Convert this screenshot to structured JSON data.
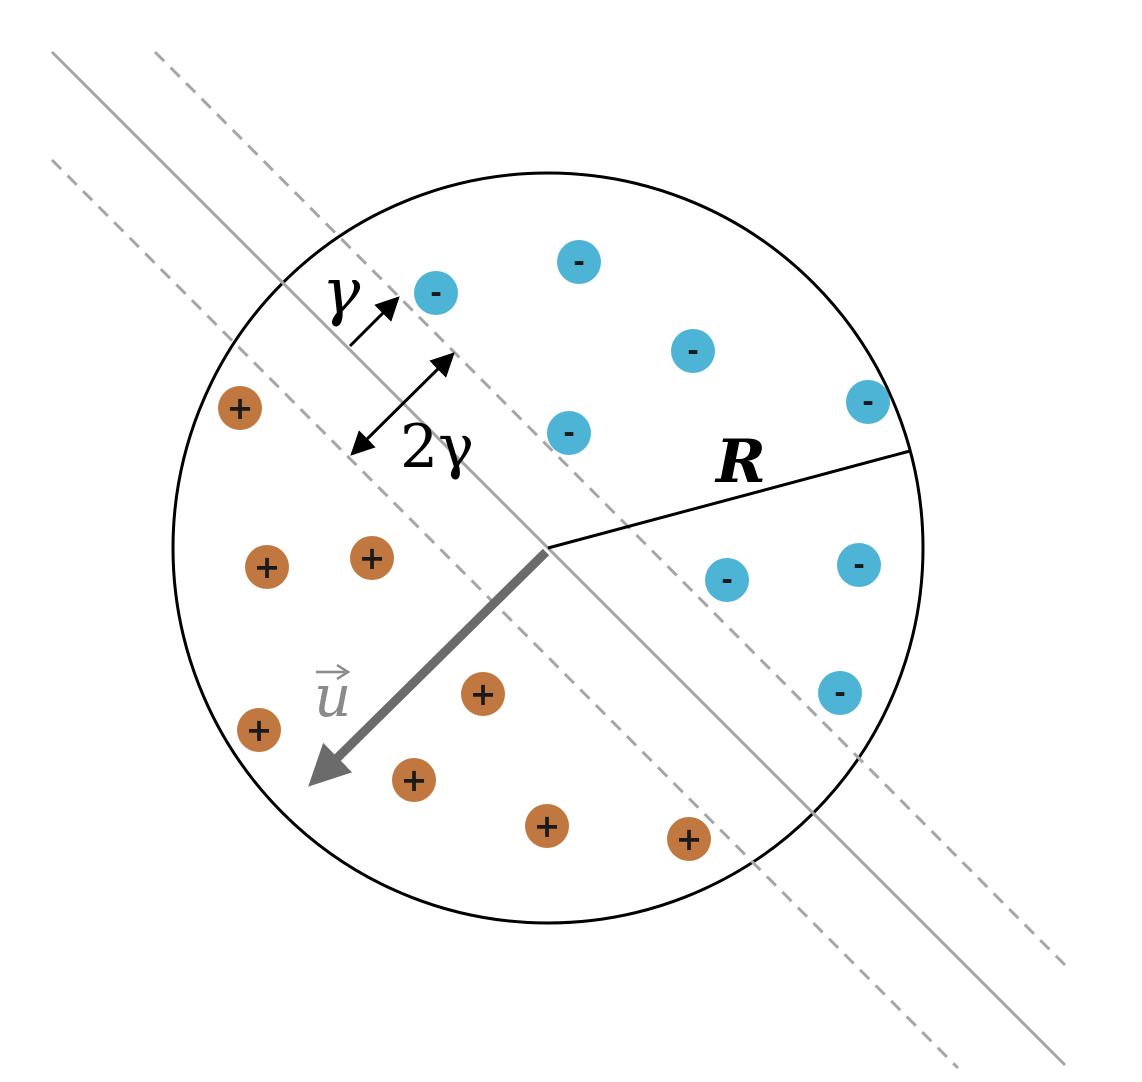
{
  "colors": {
    "background": "#ffffff",
    "circle_stroke": "#000000",
    "hyperplane": "#a6a6a6",
    "margin_lines": "#a6a6a6",
    "radius_line": "#000000",
    "vector_u": "#6b6b6b",
    "negative_point": "#4db4d6",
    "positive_point": "#c07840",
    "sign_text": "#1a1a1a",
    "annotation_arrows": "#000000"
  },
  "labels": {
    "gamma": "γ",
    "two_gamma": "2γ",
    "radius": "R",
    "vector": "u"
  },
  "points": {
    "negative_sign": "-",
    "positive_sign": "+"
  },
  "icons": {
    "vector_arrow": "arrow-icon",
    "vector_accent": "vector-arrow-accent-icon"
  }
}
